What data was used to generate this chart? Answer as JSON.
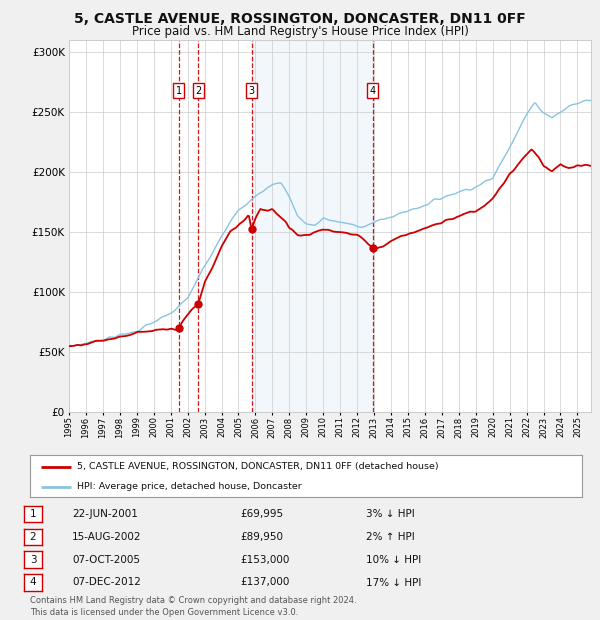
{
  "title": "5, CASTLE AVENUE, ROSSINGTON, DONCASTER, DN11 0FF",
  "subtitle": "Price paid vs. HM Land Registry's House Price Index (HPI)",
  "title_fontsize": 10,
  "subtitle_fontsize": 8.5,
  "ylabel_ticks": [
    "£0",
    "£50K",
    "£100K",
    "£150K",
    "£200K",
    "£250K",
    "£300K"
  ],
  "ytick_vals": [
    0,
    50000,
    100000,
    150000,
    200000,
    250000,
    300000
  ],
  "ylim": [
    0,
    310000
  ],
  "xlim_start": 1995.0,
  "xlim_end": 2025.8,
  "hpi_color": "#89c4e1",
  "price_color": "#cc0000",
  "sale_dot_color": "#cc0000",
  "dashed_line_color": "#cc0000",
  "shade_color": "#cce0f5",
  "grid_color": "#cccccc",
  "legend_label_price": "5, CASTLE AVENUE, ROSSINGTON, DONCASTER, DN11 0FF (detached house)",
  "legend_label_hpi": "HPI: Average price, detached house, Doncaster",
  "sales": [
    {
      "num": 1,
      "date_label": "22-JUN-2001",
      "year": 2001.47,
      "price": 69995,
      "hpi_pct": "3% ↓ HPI"
    },
    {
      "num": 2,
      "date_label": "15-AUG-2002",
      "year": 2002.62,
      "price": 89950,
      "hpi_pct": "2% ↑ HPI"
    },
    {
      "num": 3,
      "date_label": "07-OCT-2005",
      "year": 2005.77,
      "price": 153000,
      "hpi_pct": "10% ↓ HPI"
    },
    {
      "num": 4,
      "date_label": "07-DEC-2012",
      "year": 2012.93,
      "price": 137000,
      "hpi_pct": "17% ↓ HPI"
    }
  ],
  "footer": "Contains HM Land Registry data © Crown copyright and database right 2024.\nThis data is licensed under the Open Government Licence v3.0.",
  "background_color": "#f0f0f0",
  "plot_bg_color": "#ffffff",
  "hpi_key": [
    [
      1995.0,
      55000
    ],
    [
      1996,
      57500
    ],
    [
      1997,
      61000
    ],
    [
      1998,
      64000
    ],
    [
      1999,
      68000
    ],
    [
      2000,
      75000
    ],
    [
      2001,
      82000
    ],
    [
      2002,
      95000
    ],
    [
      2003,
      122000
    ],
    [
      2004,
      148000
    ],
    [
      2005,
      168000
    ],
    [
      2006,
      180000
    ],
    [
      2007.0,
      190000
    ],
    [
      2007.5,
      192000
    ],
    [
      2008.0,
      180000
    ],
    [
      2008.5,
      163000
    ],
    [
      2009.0,
      157000
    ],
    [
      2009.5,
      155000
    ],
    [
      2010.0,
      162000
    ],
    [
      2010.5,
      160000
    ],
    [
      2011.0,
      158000
    ],
    [
      2011.5,
      157000
    ],
    [
      2012.0,
      155000
    ],
    [
      2012.5,
      156000
    ],
    [
      2013.0,
      158000
    ],
    [
      2014.0,
      163000
    ],
    [
      2015.0,
      168000
    ],
    [
      2016.0,
      173000
    ],
    [
      2017.0,
      179000
    ],
    [
      2018.0,
      184000
    ],
    [
      2019.0,
      188000
    ],
    [
      2020.0,
      195000
    ],
    [
      2021.0,
      222000
    ],
    [
      2022.0,
      248000
    ],
    [
      2022.5,
      258000
    ],
    [
      2023.0,
      250000
    ],
    [
      2023.5,
      246000
    ],
    [
      2024.0,
      250000
    ],
    [
      2024.5,
      255000
    ],
    [
      2025.5,
      260000
    ]
  ],
  "price_key": [
    [
      1995.0,
      55000
    ],
    [
      1996.0,
      57500
    ],
    [
      1997.0,
      60000
    ],
    [
      1998.0,
      63000
    ],
    [
      1999.0,
      66000
    ],
    [
      2000.5,
      68500
    ],
    [
      2001.47,
      69995
    ],
    [
      2001.8,
      77000
    ],
    [
      2002.2,
      85000
    ],
    [
      2002.62,
      89950
    ],
    [
      2003.0,
      108000
    ],
    [
      2003.5,
      122000
    ],
    [
      2004.0,
      138000
    ],
    [
      2004.5,
      150000
    ],
    [
      2005.3,
      160000
    ],
    [
      2005.6,
      165000
    ],
    [
      2005.77,
      153000
    ],
    [
      2006.0,
      162000
    ],
    [
      2006.3,
      170000
    ],
    [
      2006.7,
      168000
    ],
    [
      2007.0,
      170000
    ],
    [
      2007.3,
      165000
    ],
    [
      2007.8,
      158000
    ],
    [
      2008.0,
      153000
    ],
    [
      2008.5,
      148000
    ],
    [
      2009.0,
      148000
    ],
    [
      2009.5,
      150000
    ],
    [
      2010.0,
      153000
    ],
    [
      2010.5,
      151000
    ],
    [
      2011.0,
      150000
    ],
    [
      2011.5,
      149000
    ],
    [
      2012.0,
      148000
    ],
    [
      2012.5,
      143000
    ],
    [
      2012.93,
      137000
    ],
    [
      2013.2,
      137000
    ],
    [
      2013.5,
      138000
    ],
    [
      2014.0,
      143000
    ],
    [
      2015.0,
      149000
    ],
    [
      2016.0,
      153000
    ],
    [
      2017.0,
      158000
    ],
    [
      2018.0,
      164000
    ],
    [
      2019.0,
      168000
    ],
    [
      2019.5,
      172000
    ],
    [
      2020.0,
      178000
    ],
    [
      2021.0,
      198000
    ],
    [
      2022.0,
      215000
    ],
    [
      2022.3,
      218000
    ],
    [
      2022.7,
      213000
    ],
    [
      2023.0,
      205000
    ],
    [
      2023.5,
      200000
    ],
    [
      2024.0,
      207000
    ],
    [
      2024.5,
      203000
    ],
    [
      2025.5,
      206000
    ]
  ]
}
